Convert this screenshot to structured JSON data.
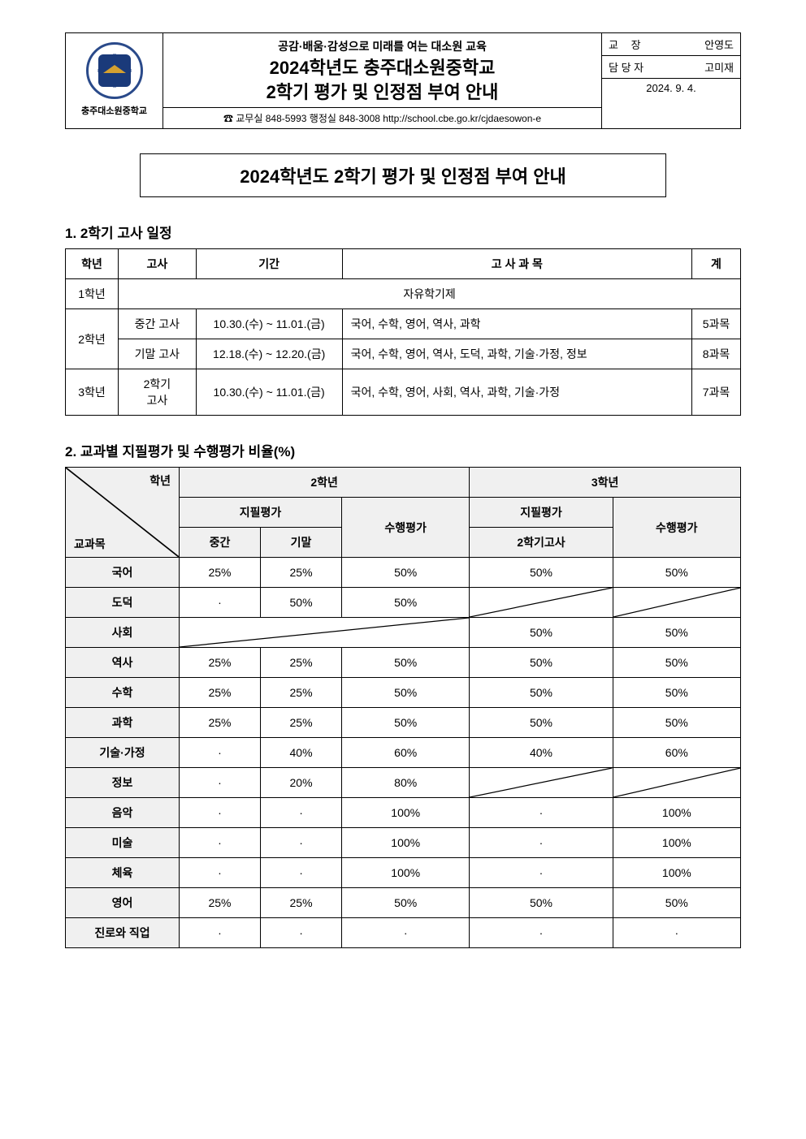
{
  "header": {
    "logo_label": "충주대소원중학교",
    "slogan": "공감·배움·감성으로 미래를 여는 대소원 교육",
    "title_line1": "2024학년도 충주대소원중학교",
    "title_line2": "2학기 평가 및 인정점 부여 안내",
    "contact": "☎ 교무실 848-5993  행정실 848-3008  http://school.cbe.go.kr/cjdaesowon-e",
    "right": {
      "principal_label": "교    장",
      "principal_name": "안영도",
      "person_label": "담 당 자",
      "person_name": "고미재",
      "date": "2024. 9. 4."
    }
  },
  "big_title": "2024학년도 2학기 평가 및 인정점 부여 안내",
  "section1": {
    "heading": "1. 2학기 고사 일정",
    "cols": [
      "학년",
      "고사",
      "기간",
      "고 사 과 목",
      "계"
    ],
    "grade1_free": "자유학기제",
    "rows": [
      {
        "grade": "1학년"
      },
      {
        "grade": "2학년",
        "exam": "중간 고사",
        "period": "10.30.(수) ~ 11.01.(금)",
        "subjects": "국어, 수학, 영어, 역사, 과학",
        "count": "5과목"
      },
      {
        "exam": "기말 고사",
        "period": "12.18.(수) ~ 12.20.(금)",
        "subjects": "국어, 수학, 영어, 역사, 도덕, 과학, 기술·가정, 정보",
        "count": "8과목"
      },
      {
        "grade": "3학년",
        "exam": "2학기\n고사",
        "period": "10.30.(수) ~ 11.01.(금)",
        "subjects": "국어, 수학, 영어, 사회, 역사, 과학, 기술·가정",
        "count": "7과목"
      }
    ]
  },
  "section2": {
    "heading": "2. 교과별 지필평가 및 수행평가 비율(%)",
    "diag_top": "학년",
    "diag_bot": "교과목",
    "g2_label": "2학년",
    "g3_label": "3학년",
    "written_label": "지필평가",
    "perf_label": "수행평가",
    "mid_label": "중간",
    "final_label": "기말",
    "g3_exam_label": "2학기고사",
    "dot": "·",
    "rows": [
      {
        "subj": "국어",
        "g2m": "25%",
        "g2f": "25%",
        "g2p": "50%",
        "g3w": "50%",
        "g3p": "50%"
      },
      {
        "subj": "도덕",
        "g2m": "·",
        "g2f": "50%",
        "g2p": "50%",
        "g3w": "slash",
        "g3p": "slash"
      },
      {
        "subj": "사회",
        "g2m": "slash3",
        "g2f": "",
        "g2p": "",
        "g3w": "50%",
        "g3p": "50%"
      },
      {
        "subj": "역사",
        "g2m": "25%",
        "g2f": "25%",
        "g2p": "50%",
        "g3w": "50%",
        "g3p": "50%"
      },
      {
        "subj": "수학",
        "g2m": "25%",
        "g2f": "25%",
        "g2p": "50%",
        "g3w": "50%",
        "g3p": "50%"
      },
      {
        "subj": "과학",
        "g2m": "25%",
        "g2f": "25%",
        "g2p": "50%",
        "g3w": "50%",
        "g3p": "50%"
      },
      {
        "subj": "기술·가정",
        "g2m": "·",
        "g2f": "40%",
        "g2p": "60%",
        "g3w": "40%",
        "g3p": "60%"
      },
      {
        "subj": "정보",
        "g2m": "·",
        "g2f": "20%",
        "g2p": "80%",
        "g3w": "slash",
        "g3p": "slash"
      },
      {
        "subj": "음악",
        "g2m": "·",
        "g2f": "·",
        "g2p": "100%",
        "g3w": "·",
        "g3p": "100%"
      },
      {
        "subj": "미술",
        "g2m": "·",
        "g2f": "·",
        "g2p": "100%",
        "g3w": "·",
        "g3p": "100%"
      },
      {
        "subj": "체육",
        "g2m": "·",
        "g2f": "·",
        "g2p": "100%",
        "g3w": "·",
        "g3p": "100%"
      },
      {
        "subj": "영어",
        "g2m": "25%",
        "g2f": "25%",
        "g2p": "50%",
        "g3w": "50%",
        "g3p": "50%"
      },
      {
        "subj": "진로와 직업",
        "g2m": "·",
        "g2f": "·",
        "g2p": "·",
        "g3w": "·",
        "g3p": "·"
      }
    ]
  },
  "colors": {
    "border": "#000000",
    "header_bg": "#f0f0f0",
    "text": "#000000"
  }
}
